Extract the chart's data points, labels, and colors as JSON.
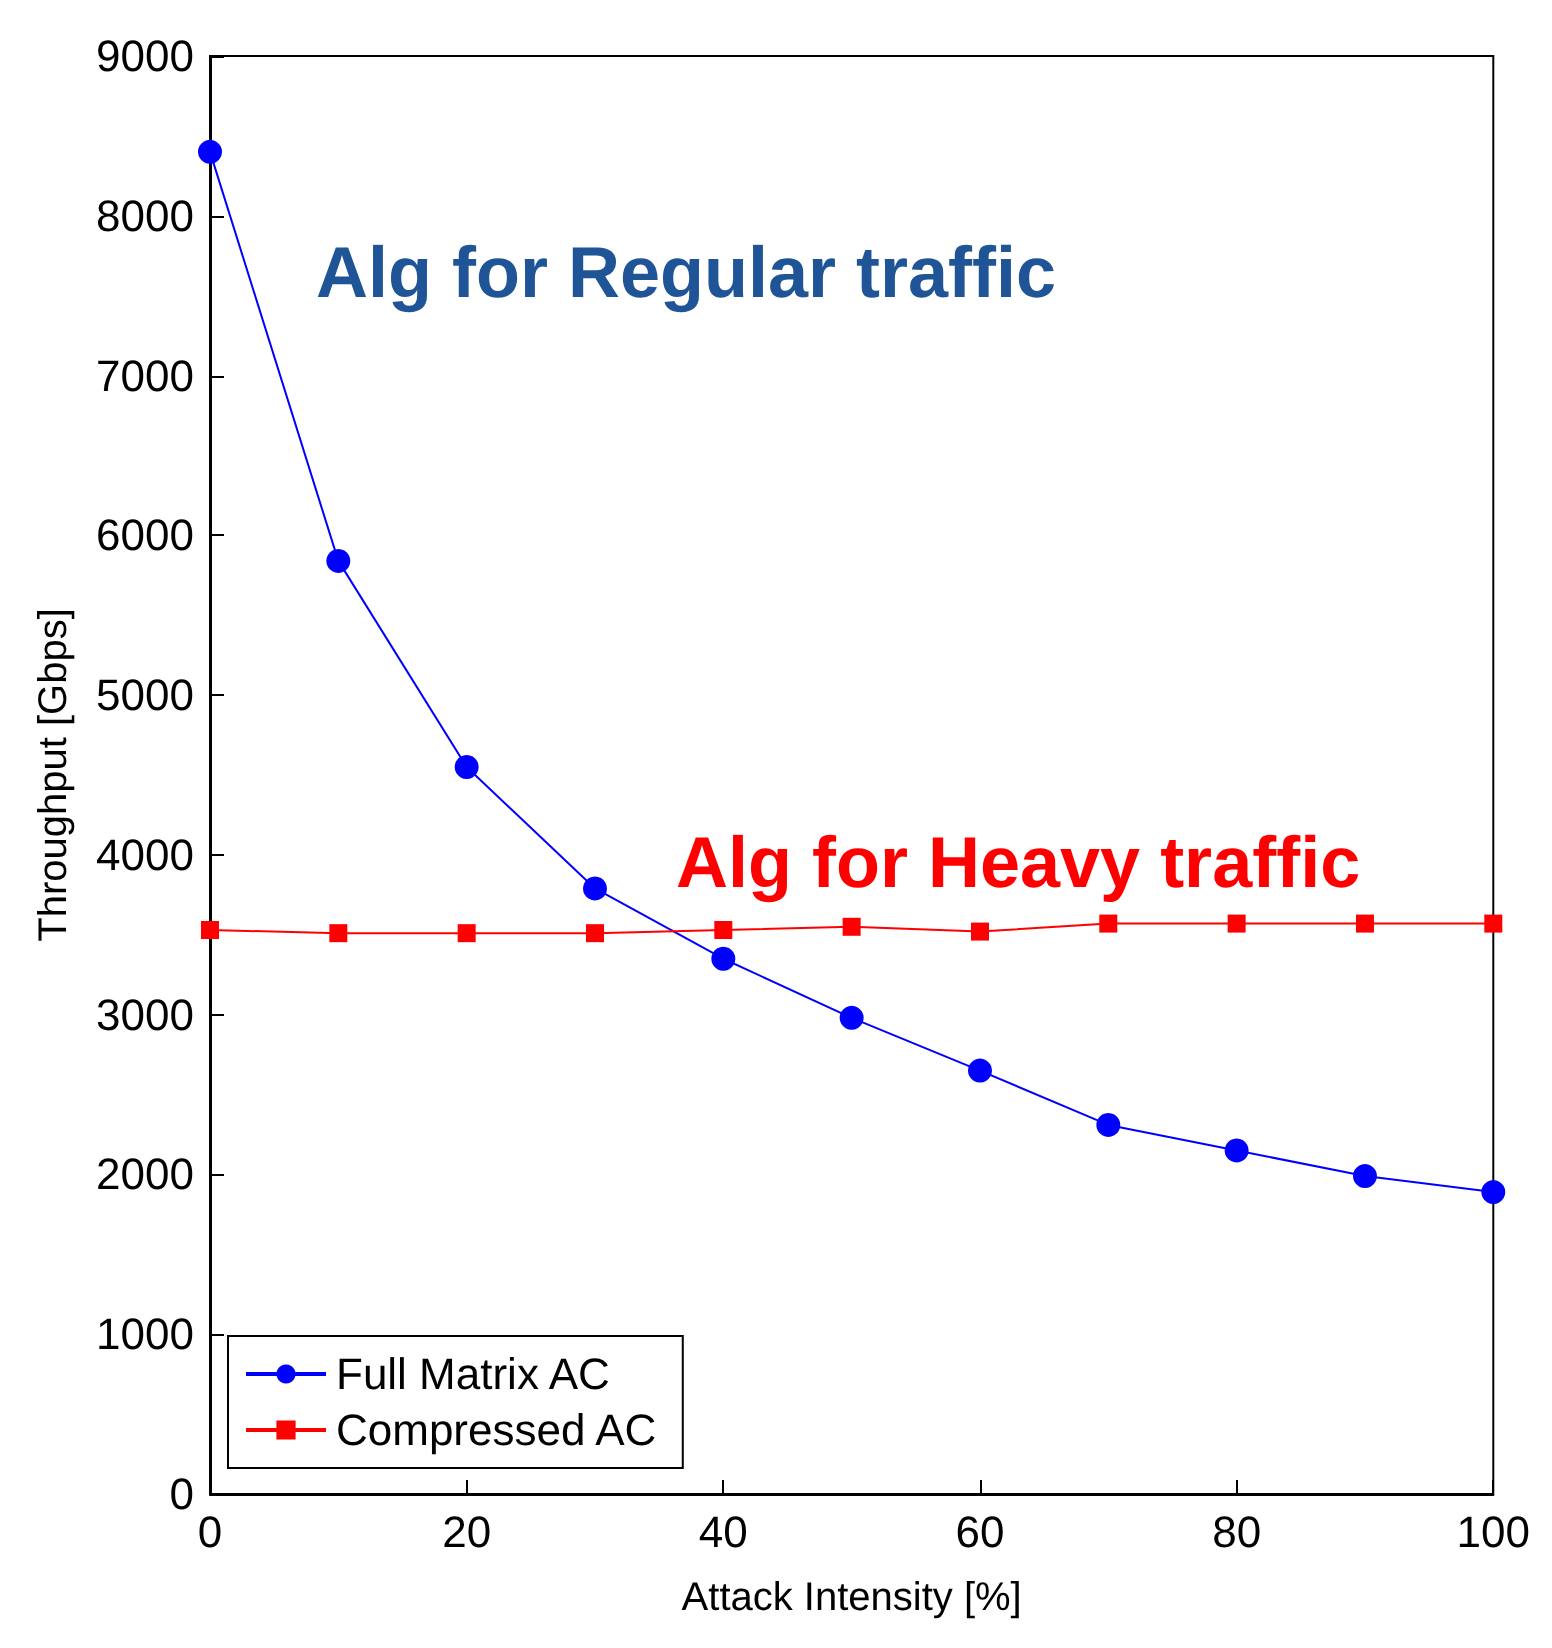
{
  "chart_data": {
    "type": "line",
    "xlabel": "Attack Intensity [%]",
    "ylabel": "Throughput [Gbps]",
    "x": [
      0,
      10,
      20,
      30,
      40,
      50,
      60,
      70,
      80,
      90,
      100
    ],
    "series": [
      {
        "name": "Full Matrix AC",
        "color": "#0000ff",
        "marker": "circle",
        "values": [
          8400,
          5840,
          4550,
          3790,
          3350,
          2980,
          2650,
          2310,
          2150,
          1990,
          1890
        ]
      },
      {
        "name": "Compressed AC",
        "color": "#ff0000",
        "marker": "square",
        "values": [
          3530,
          3510,
          3510,
          3510,
          3530,
          3550,
          3520,
          3570,
          3570,
          3570,
          3570
        ]
      }
    ],
    "annotations": [
      "Alg for Regular traffic",
      "Alg for Heavy traffic"
    ],
    "xlim": [
      0,
      100
    ],
    "xticks": [
      0,
      20,
      40,
      60,
      80,
      100
    ],
    "ylim": [
      0,
      9000
    ],
    "yticks": [
      0,
      1000,
      2000,
      3000,
      4000,
      5000,
      6000,
      7000,
      8000,
      9000
    ],
    "grid": false,
    "legend": "bottom left",
    "line_style": "solid"
  }
}
